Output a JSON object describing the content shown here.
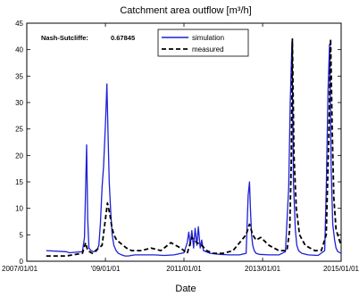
{
  "chart_data": {
    "type": "line",
    "title": "Catchment area outflow [m³/h]",
    "xlabel": "Date",
    "ylabel": "",
    "xlim": [
      "2007-01-01",
      "2015-01-01"
    ],
    "ylim": [
      0,
      45
    ],
    "x_ticks": [
      {
        "date": "2007-01-01",
        "label": "2007/01/01"
      },
      {
        "date": "2009-01-01",
        "label": "'09/01/01"
      },
      {
        "date": "2011-01-01",
        "label": "2011/01/01"
      },
      {
        "date": "2013-01-01",
        "label": "2013/01/01"
      },
      {
        "date": "2015-01-01",
        "label": "2015/01/01"
      }
    ],
    "y_ticks": [
      0,
      5,
      10,
      15,
      20,
      25,
      30,
      35,
      40,
      45
    ],
    "grid": false,
    "legend_position": "top-center",
    "annotation": {
      "label": "Nash-Sutcliffe:",
      "value": "0.67845"
    },
    "series": [
      {
        "name": "simulation",
        "color": "#1f1fd6",
        "style": "solid",
        "x": [
          "2007-07-01",
          "2008-01-01",
          "2008-02-01",
          "2008-04-01",
          "2008-06-01",
          "2008-06-20",
          "2008-07-10",
          "2008-07-20",
          "2008-08-01",
          "2008-08-20",
          "2008-09-10",
          "2008-10-10",
          "2008-11-01",
          "2008-11-15",
          "2008-12-01",
          "2008-12-15",
          "2009-01-01",
          "2009-01-15",
          "2009-01-25",
          "2009-02-05",
          "2009-02-20",
          "2009-03-05",
          "2009-03-20",
          "2009-04-10",
          "2009-05-01",
          "2009-06-01",
          "2009-07-01",
          "2009-08-01",
          "2009-10-01",
          "2010-01-01",
          "2010-04-01",
          "2010-07-01",
          "2010-10-01",
          "2011-01-01",
          "2011-02-01",
          "2011-02-15",
          "2011-03-01",
          "2011-03-15",
          "2011-04-01",
          "2011-04-15",
          "2011-05-01",
          "2011-05-15",
          "2011-06-01",
          "2011-06-15",
          "2011-07-01",
          "2011-09-01",
          "2011-12-01",
          "2012-03-01",
          "2012-06-01",
          "2012-08-01",
          "2012-08-20",
          "2012-09-01",
          "2012-09-10",
          "2012-09-20",
          "2012-10-01",
          "2012-10-15",
          "2012-11-01",
          "2012-12-01",
          "2013-03-01",
          "2013-06-01",
          "2013-08-01",
          "2013-09-01",
          "2013-09-15",
          "2013-10-01",
          "2013-10-15",
          "2013-11-01",
          "2013-11-15",
          "2013-12-01",
          "2014-01-01",
          "2014-03-01",
          "2014-06-01",
          "2014-08-01",
          "2014-08-15",
          "2014-09-01",
          "2014-09-15",
          "2014-10-01",
          "2014-10-15",
          "2014-11-01",
          "2014-11-15",
          "2014-12-01",
          "2015-01-01"
        ],
        "y": [
          2.0,
          1.8,
          1.6,
          1.7,
          1.8,
          4.5,
          22.0,
          8.0,
          2.5,
          2.0,
          1.8,
          1.9,
          3.0,
          7.0,
          14.0,
          18.0,
          26.0,
          33.5,
          24.0,
          15.0,
          9.0,
          5.0,
          3.0,
          2.0,
          1.5,
          1.2,
          1.0,
          1.0,
          1.2,
          1.2,
          1.2,
          1.1,
          1.2,
          1.6,
          3.5,
          5.5,
          3.0,
          5.8,
          2.5,
          6.2,
          3.0,
          6.5,
          2.5,
          4.0,
          2.0,
          1.5,
          1.3,
          1.2,
          1.2,
          1.5,
          12.5,
          15.0,
          10.0,
          5.0,
          3.0,
          2.0,
          1.5,
          1.3,
          1.2,
          1.2,
          1.8,
          14.0,
          30.0,
          41.5,
          15.0,
          6.0,
          3.0,
          2.0,
          1.5,
          1.2,
          1.1,
          2.0,
          13.5,
          32.0,
          41.0,
          17.0,
          7.0,
          4.0,
          2.5,
          1.8,
          1.5
        ]
      },
      {
        "name": "measured",
        "color": "#000000",
        "style": "dashed",
        "x": [
          "2007-07-01",
          "2008-01-01",
          "2008-06-01",
          "2008-07-01",
          "2008-07-20",
          "2008-09-01",
          "2008-12-01",
          "2009-01-01",
          "2009-01-20",
          "2009-02-10",
          "2009-03-01",
          "2009-03-20",
          "2009-04-15",
          "2009-05-15",
          "2009-06-15",
          "2009-07-15",
          "2009-09-01",
          "2009-12-01",
          "2010-03-01",
          "2010-06-01",
          "2010-09-01",
          "2010-12-01",
          "2011-02-01",
          "2011-03-15",
          "2011-05-01",
          "2011-06-15",
          "2011-08-01",
          "2011-10-01",
          "2012-01-01",
          "2012-04-01",
          "2012-06-01",
          "2012-08-01",
          "2012-09-01",
          "2012-10-01",
          "2012-11-01",
          "2012-12-15",
          "2013-03-01",
          "2013-06-01",
          "2013-08-15",
          "2013-09-10",
          "2013-09-25",
          "2013-10-05",
          "2013-10-20",
          "2013-11-10",
          "2013-12-10",
          "2014-02-01",
          "2014-05-01",
          "2014-07-01",
          "2014-08-15",
          "2014-09-10",
          "2014-09-25",
          "2014-10-10",
          "2014-10-25",
          "2014-11-15",
          "2014-12-15",
          "2015-01-01"
        ],
        "y": [
          1.0,
          1.0,
          1.5,
          3.5,
          2.0,
          1.5,
          3.0,
          8.0,
          11.0,
          9.0,
          6.5,
          5.0,
          4.0,
          3.5,
          3.0,
          2.5,
          2.0,
          2.0,
          2.5,
          2.0,
          3.5,
          2.5,
          1.5,
          4.5,
          3.5,
          3.0,
          2.0,
          1.5,
          1.5,
          2.0,
          3.5,
          5.0,
          7.0,
          5.0,
          4.0,
          4.5,
          3.0,
          2.0,
          2.0,
          6.0,
          19.0,
          42.0,
          20.0,
          10.0,
          5.0,
          3.0,
          2.0,
          2.0,
          5.0,
          25.0,
          42.0,
          25.0,
          12.0,
          6.0,
          4.0,
          3.0
        ]
      }
    ]
  }
}
